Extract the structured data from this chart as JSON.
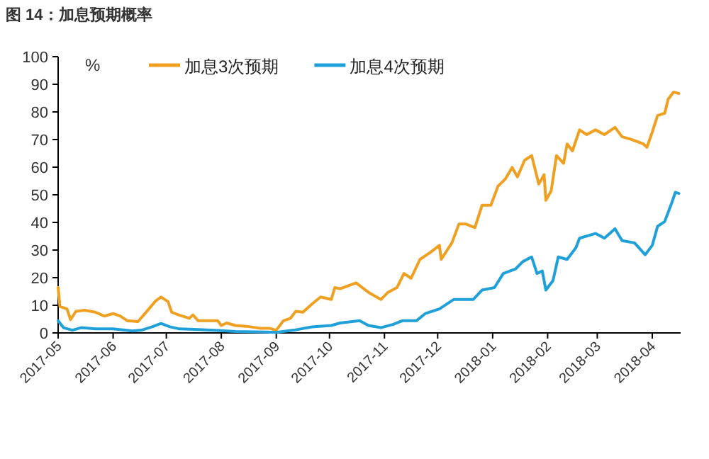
{
  "chart_data": {
    "type": "line",
    "title": "图 14：加息预期概率",
    "ylabel": "%",
    "xlim": [
      "2017-05-01",
      "2018-04-17"
    ],
    "xticks": [
      {
        "value": "2017-05-01",
        "label": "2017-05"
      },
      {
        "value": "2017-06-01",
        "label": "2017-06"
      },
      {
        "value": "2017-07-01",
        "label": "2017-07"
      },
      {
        "value": "2017-08-01",
        "label": "2017-08"
      },
      {
        "value": "2017-09-01",
        "label": "2017-09"
      },
      {
        "value": "2017-10-01",
        "label": "2017-10"
      },
      {
        "value": "2017-11-01",
        "label": "2017-11"
      },
      {
        "value": "2017-12-01",
        "label": "2017-12"
      },
      {
        "value": "2018-01-01",
        "label": "2018-01"
      },
      {
        "value": "2018-02-01",
        "label": "2018-02"
      },
      {
        "value": "2018-03-01",
        "label": "2018-03"
      },
      {
        "value": "2018-04-01",
        "label": "2018-04"
      }
    ],
    "ylim": [
      0,
      100
    ],
    "yticks": [
      0,
      10,
      20,
      30,
      40,
      50,
      60,
      70,
      80,
      90,
      100
    ],
    "grid": false,
    "legend": "top",
    "marker": "none",
    "line_style": "solid",
    "series": [
      {
        "name": "加息3次预期",
        "color": "#f0a020",
        "x": [
          "2017-05-01",
          "2017-05-02",
          "2017-05-06",
          "2017-05-08",
          "2017-05-11",
          "2017-05-16",
          "2017-05-22",
          "2017-05-27",
          "2017-06-01",
          "2017-06-05",
          "2017-06-09",
          "2017-06-15",
          "2017-06-20",
          "2017-06-25",
          "2017-06-28",
          "2017-07-02",
          "2017-07-04",
          "2017-07-08",
          "2017-07-14",
          "2017-07-16",
          "2017-07-19",
          "2017-07-24",
          "2017-07-30",
          "2017-08-01",
          "2017-08-04",
          "2017-08-09",
          "2017-08-15",
          "2017-08-23",
          "2017-08-28",
          "2017-09-01",
          "2017-09-05",
          "2017-09-09",
          "2017-09-12",
          "2017-09-16",
          "2017-09-21",
          "2017-09-26",
          "2017-10-02",
          "2017-10-04",
          "2017-10-07",
          "2017-10-16",
          "2017-10-23",
          "2017-10-30",
          "2017-11-03",
          "2017-11-08",
          "2017-11-12",
          "2017-11-16",
          "2017-11-21",
          "2017-11-27",
          "2017-12-02",
          "2017-12-03",
          "2017-12-09",
          "2017-12-13",
          "2017-12-17",
          "2017-12-22",
          "2017-12-26",
          "2017-12-31",
          "2018-01-04",
          "2018-01-08",
          "2018-01-12",
          "2018-01-15",
          "2018-01-19",
          "2018-01-23",
          "2018-01-27",
          "2018-01-30",
          "2018-01-31",
          "2018-02-03",
          "2018-02-06",
          "2018-02-10",
          "2018-02-12",
          "2018-02-15",
          "2018-02-19",
          "2018-02-23",
          "2018-02-28",
          "2018-03-05",
          "2018-03-11",
          "2018-03-15",
          "2018-03-20",
          "2018-03-27",
          "2018-03-29",
          "2018-04-01",
          "2018-04-04",
          "2018-04-08",
          "2018-04-10",
          "2018-04-13",
          "2018-04-16"
        ],
        "values": [
          16.4,
          9.6,
          8.7,
          4.8,
          7.8,
          8.2,
          7.5,
          6.1,
          7.0,
          6.1,
          4.4,
          4.1,
          7.8,
          11.6,
          13.0,
          11.3,
          7.5,
          6.5,
          5.3,
          6.5,
          4.4,
          4.4,
          4.4,
          2.7,
          3.6,
          2.7,
          2.4,
          1.7,
          1.7,
          1.0,
          4.4,
          5.3,
          7.8,
          7.5,
          10.4,
          13.0,
          12.1,
          16.4,
          16.0,
          18.1,
          14.7,
          12.1,
          14.7,
          16.4,
          21.5,
          19.8,
          26.6,
          29.2,
          31.7,
          26.6,
          32.6,
          39.4,
          39.4,
          38.1,
          46.2,
          46.2,
          53.1,
          55.6,
          59.9,
          56.5,
          62.5,
          64.2,
          53.9,
          57.3,
          48.0,
          51.4,
          64.2,
          61.4,
          68.4,
          65.9,
          73.5,
          71.8,
          73.5,
          71.8,
          74.4,
          71.0,
          70.1,
          68.4,
          67.2,
          72.7,
          78.7,
          79.5,
          84.6,
          87.2,
          86.7
        ]
      },
      {
        "name": "加息4次预期",
        "color": "#1fa0d8",
        "x": [
          "2017-05-01",
          "2017-05-04",
          "2017-05-09",
          "2017-05-14",
          "2017-05-22",
          "2017-06-01",
          "2017-06-12",
          "2017-06-17",
          "2017-06-23",
          "2017-06-28",
          "2017-07-03",
          "2017-07-08",
          "2017-07-19",
          "2017-07-30",
          "2017-08-09",
          "2017-08-26",
          "2017-09-01",
          "2017-09-11",
          "2017-09-21",
          "2017-10-02",
          "2017-10-07",
          "2017-10-18",
          "2017-10-23",
          "2017-10-30",
          "2017-11-06",
          "2017-11-11",
          "2017-11-19",
          "2017-11-24",
          "2017-12-02",
          "2017-12-10",
          "2017-12-21",
          "2017-12-26",
          "2018-01-02",
          "2018-01-07",
          "2018-01-14",
          "2018-01-18",
          "2018-01-23",
          "2018-01-26",
          "2018-01-29",
          "2018-01-31",
          "2018-02-04",
          "2018-02-07",
          "2018-02-12",
          "2018-02-17",
          "2018-02-19",
          "2018-02-28",
          "2018-03-05",
          "2018-03-11",
          "2018-03-15",
          "2018-03-22",
          "2018-03-28",
          "2018-04-01",
          "2018-04-04",
          "2018-04-08",
          "2018-04-12",
          "2018-04-14",
          "2018-04-16"
        ],
        "values": [
          4.4,
          1.9,
          1.0,
          1.9,
          1.5,
          1.5,
          0.7,
          1.0,
          2.2,
          3.4,
          2.2,
          1.5,
          1.2,
          0.9,
          0.5,
          0.3,
          0.2,
          1.0,
          2.2,
          2.7,
          3.6,
          4.4,
          2.7,
          1.9,
          3.1,
          4.4,
          4.4,
          7.0,
          8.7,
          12.1,
          12.1,
          15.5,
          16.4,
          21.5,
          23.2,
          25.8,
          27.5,
          21.5,
          22.4,
          15.5,
          18.9,
          27.5,
          26.6,
          30.9,
          34.3,
          36.0,
          34.3,
          37.7,
          33.4,
          32.6,
          28.3,
          31.7,
          38.6,
          40.3,
          47.1,
          50.9,
          50.5
        ]
      }
    ]
  }
}
